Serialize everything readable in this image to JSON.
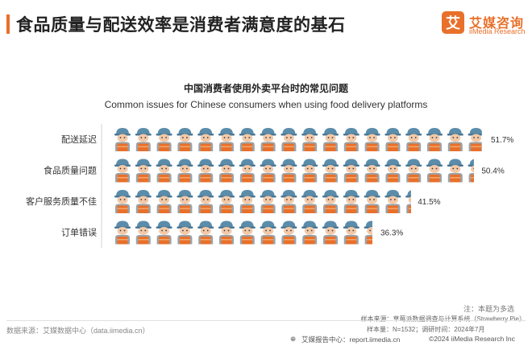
{
  "page": {
    "title": "食品质量与配送效率是消费者满意度的基石",
    "accent_color": "#e8702a"
  },
  "logo": {
    "mark": "艾",
    "name_cn": "艾媒咨询",
    "name_en": "iiMedia Research"
  },
  "chart_data": {
    "type": "bar",
    "style": "pictograph",
    "title": "中国消费者使用外卖平台时的常见问题",
    "subtitle": "Common issues for Chinese consumers when using food delivery platforms",
    "categories": [
      "配送延迟",
      "食品质量问题",
      "客户服务质量不佳",
      "订单错误"
    ],
    "values": [
      51.7,
      50.4,
      41.5,
      36.3
    ],
    "value_labels": [
      "51.7%",
      "50.4%",
      "41.5%",
      "36.3%"
    ],
    "unit": "%",
    "icon": "delivery-person-icon",
    "colors": {
      "cap": "#5b8dab",
      "skin": "#f3c9a8",
      "shirt": "#9aa3aa",
      "box": "#e8702a",
      "box_stripe": "#f4a46a"
    }
  },
  "footer": {
    "note": "注：本题为多选",
    "sample_source": "样本来源：草莓派数据调查与计算系统（Strawberry Pie）",
    "sample_size": "样本量：N=1532；调研时间：2024年7月",
    "data_source": "数据来源：艾媒数据中心（data.iimedia.cn）",
    "report_center": "艾媒报告中心：report.iimedia.cn",
    "copyright": "©2024  iiMedia Research  Inc"
  }
}
